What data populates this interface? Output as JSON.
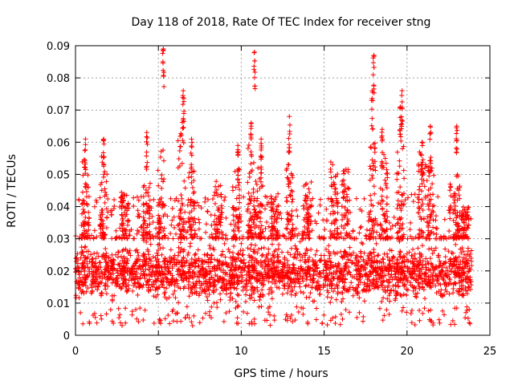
{
  "chart_data": {
    "type": "scatter",
    "title": "Day 118 of 2018, Rate Of TEC Index for receiver stng",
    "xlabel": "GPS time / hours",
    "ylabel": "ROTI / TECUs",
    "xlim": [
      0,
      25
    ],
    "ylim": [
      0,
      0.09
    ],
    "x_ticks": [
      "0",
      "5",
      "10",
      "15",
      "20",
      "25"
    ],
    "y_ticks": [
      "0",
      "0.01",
      "0.02",
      "0.03",
      "0.04",
      "0.05",
      "0.06",
      "0.07",
      "0.08",
      "0.09"
    ],
    "grid": true,
    "marker": "+",
    "color": "#ff0000",
    "data_range_x": [
      0,
      23.9
    ],
    "typical_band": [
      0.008,
      0.03
    ],
    "notable_peaks": [
      {
        "x": 0.6,
        "y": 0.061
      },
      {
        "x": 1.7,
        "y": 0.061
      },
      {
        "x": 4.3,
        "y": 0.063
      },
      {
        "x": 5.3,
        "y": 0.089
      },
      {
        "x": 6.5,
        "y": 0.076
      },
      {
        "x": 7.0,
        "y": 0.061
      },
      {
        "x": 9.8,
        "y": 0.059
      },
      {
        "x": 10.8,
        "y": 0.088
      },
      {
        "x": 10.6,
        "y": 0.066
      },
      {
        "x": 11.2,
        "y": 0.061
      },
      {
        "x": 12.9,
        "y": 0.068
      },
      {
        "x": 18.0,
        "y": 0.087
      },
      {
        "x": 17.9,
        "y": 0.076
      },
      {
        "x": 19.7,
        "y": 0.076
      },
      {
        "x": 19.6,
        "y": 0.071
      },
      {
        "x": 18.5,
        "y": 0.064
      },
      {
        "x": 21.4,
        "y": 0.065
      },
      {
        "x": 23.0,
        "y": 0.065
      },
      {
        "x": 20.9,
        "y": 0.06
      },
      {
        "x": 22.6,
        "y": 0.047
      }
    ],
    "peak_bursts": [
      {
        "x": 0.6,
        "y": 0.055
      },
      {
        "x": 1.7,
        "y": 0.056
      },
      {
        "x": 4.3,
        "y": 0.048
      },
      {
        "x": 5.2,
        "y": 0.058
      },
      {
        "x": 6.4,
        "y": 0.072
      },
      {
        "x": 7.0,
        "y": 0.052
      },
      {
        "x": 9.7,
        "y": 0.052
      },
      {
        "x": 10.6,
        "y": 0.06
      },
      {
        "x": 11.1,
        "y": 0.052
      },
      {
        "x": 12.9,
        "y": 0.055
      },
      {
        "x": 14.0,
        "y": 0.048
      },
      {
        "x": 15.6,
        "y": 0.055
      },
      {
        "x": 16.3,
        "y": 0.052
      },
      {
        "x": 17.9,
        "y": 0.06
      },
      {
        "x": 18.6,
        "y": 0.057
      },
      {
        "x": 19.6,
        "y": 0.06
      },
      {
        "x": 20.9,
        "y": 0.057
      },
      {
        "x": 21.4,
        "y": 0.053
      },
      {
        "x": 23.0,
        "y": 0.05
      },
      {
        "x": 23.5,
        "y": 0.04
      },
      {
        "x": 12.0,
        "y": 0.044
      },
      {
        "x": 8.6,
        "y": 0.048
      },
      {
        "x": 3.0,
        "y": 0.045
      }
    ]
  }
}
